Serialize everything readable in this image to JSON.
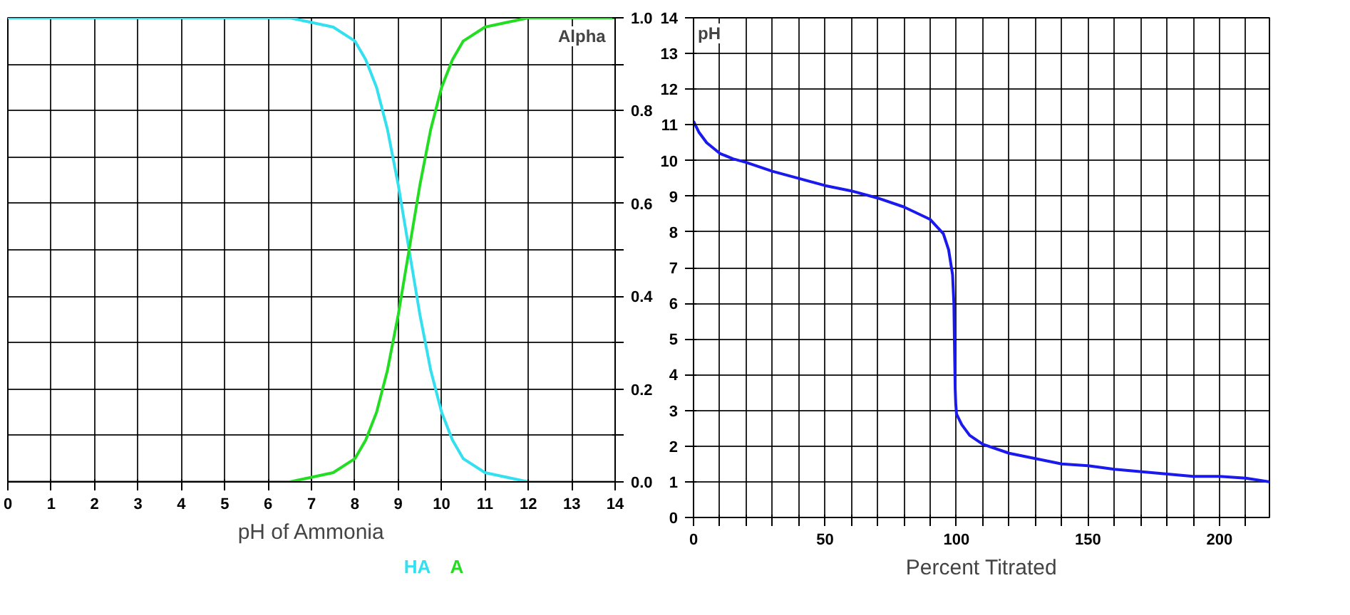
{
  "chart_data": [
    {
      "type": "line",
      "xlabel": "pH of Ammonia",
      "ylabel": "Alpha",
      "x": [
        0,
        1,
        2,
        3,
        4,
        5,
        6,
        6.5,
        7,
        7.5,
        8,
        8.25,
        8.5,
        8.75,
        9,
        9.25,
        9.5,
        9.75,
        10,
        10.25,
        10.5,
        11,
        11.5,
        12,
        13,
        14
      ],
      "series": [
        {
          "name": "HA",
          "color": "#33e0f0",
          "values": [
            1,
            1,
            1,
            1,
            1,
            1,
            1,
            1,
            0.99,
            0.98,
            0.95,
            0.91,
            0.85,
            0.76,
            0.64,
            0.5,
            0.36,
            0.24,
            0.15,
            0.09,
            0.05,
            0.02,
            0.01,
            0,
            0,
            0
          ]
        },
        {
          "name": "A",
          "color": "#22dd22",
          "values": [
            0,
            0,
            0,
            0,
            0,
            0,
            0,
            0,
            0.01,
            0.02,
            0.05,
            0.09,
            0.15,
            0.24,
            0.36,
            0.5,
            0.64,
            0.76,
            0.85,
            0.91,
            0.95,
            0.98,
            0.99,
            1,
            1,
            1
          ]
        }
      ],
      "xlim": [
        0,
        14
      ],
      "ylim": [
        0,
        1
      ],
      "xticks": [
        0,
        1,
        2,
        3,
        4,
        5,
        6,
        7,
        8,
        9,
        10,
        11,
        12,
        13,
        14
      ],
      "yticks": [
        {
          "value": 0,
          "label": "0.0"
        },
        {
          "value": 0.1,
          "label": null
        },
        {
          "value": 0.2,
          "label": "0.2"
        },
        {
          "value": 0.3,
          "label": null
        },
        {
          "value": 0.4,
          "label": "0.4"
        },
        {
          "value": 0.5,
          "label": null
        },
        {
          "value": 0.6,
          "label": "0.6"
        },
        {
          "value": 0.7,
          "label": null
        },
        {
          "value": 0.8,
          "label": "0.8"
        },
        {
          "value": 0.9,
          "label": null
        },
        {
          "value": 1,
          "label": "1.0"
        }
      ],
      "grid": true,
      "legend": "bottom",
      "line_style": "solid"
    },
    {
      "type": "line",
      "xlabel": "Percent Titrated",
      "ylabel": "pH",
      "x": [
        0,
        2,
        5,
        10,
        15,
        20,
        30,
        40,
        50,
        60,
        70,
        80,
        90,
        95,
        97,
        98.5,
        99,
        99.3,
        99.5,
        99.7,
        100,
        102,
        105,
        110,
        120,
        130,
        140,
        150,
        160,
        175,
        190,
        200,
        210,
        219
      ],
      "series": [
        {
          "color": "#1a1aee",
          "values": [
            11.1,
            10.8,
            10.5,
            10.2,
            10.05,
            9.95,
            9.7,
            9.5,
            9.3,
            9.15,
            8.95,
            8.7,
            8.35,
            7.95,
            7.5,
            6.8,
            6,
            4.5,
            3.6,
            3.2,
            2.9,
            2.6,
            2.3,
            2.05,
            1.8,
            1.65,
            1.5,
            1.45,
            1.35,
            1.25,
            1.15,
            1.15,
            1.1,
            1.0
          ]
        }
      ],
      "xlim": [
        0,
        219
      ],
      "ylim": [
        0,
        14
      ],
      "xticks": [
        0,
        {
          "value": 10,
          "label": null
        },
        {
          "value": 20,
          "label": null
        },
        {
          "value": 30,
          "label": null
        },
        {
          "value": 40,
          "label": null
        },
        50,
        {
          "value": 60,
          "label": null
        },
        {
          "value": 70,
          "label": null
        },
        {
          "value": 80,
          "label": null
        },
        {
          "value": 90,
          "label": null
        },
        100,
        {
          "value": 110,
          "label": null
        },
        {
          "value": 120,
          "label": null
        },
        {
          "value": 130,
          "label": null
        },
        {
          "value": 140,
          "label": null
        },
        150,
        {
          "value": 160,
          "label": null
        },
        {
          "value": 170,
          "label": null
        },
        {
          "value": 180,
          "label": null
        },
        {
          "value": 190,
          "label": null
        },
        200,
        {
          "value": 210,
          "label": null
        }
      ],
      "yticks": [
        0,
        1,
        2,
        3,
        4,
        5,
        6,
        7,
        8,
        9,
        10,
        11,
        12,
        13,
        14
      ],
      "grid": true,
      "line_style": "solid"
    }
  ]
}
